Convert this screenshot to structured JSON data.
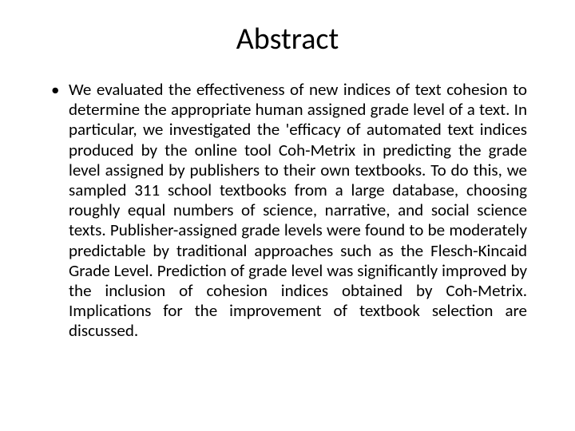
{
  "slide": {
    "title": "Abstract",
    "bullet_text": "We evaluated the effectiveness of new indices of text cohesion to determine the appropriate human assigned grade level of a text. In particular, we investigated the 'efficacy of automated text indices produced by the online tool Coh-Metrix in predicting the grade level assigned by publishers to their own textbooks. To do this, we sampled 311 school textbooks from a large database, choosing roughly equal numbers of science, narrative, and social science texts. Publisher-assigned grade levels were found to be moderately predictable by traditional approaches such as the Flesch-Kincaid Grade Level. Prediction of grade level was significantly improved by the inclusion of cohesion indices obtained by Coh-Metrix. Implications for the improvement of textbook selection are discussed."
  },
  "style": {
    "background_color": "#ffffff",
    "text_color": "#000000",
    "title_fontsize": 38,
    "body_fontsize": 21,
    "font_family": "Calibri, Arial, sans-serif",
    "title_align": "center",
    "body_align": "justify"
  }
}
